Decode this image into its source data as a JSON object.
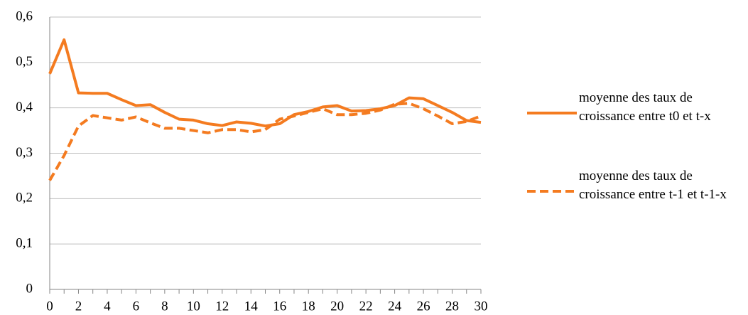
{
  "chart_data": {
    "type": "line",
    "categories": [
      "0",
      null,
      "2",
      null,
      "4",
      null,
      "6",
      null,
      "8",
      null,
      "10",
      null,
      "12",
      null,
      "14",
      null,
      "16",
      null,
      "18",
      null,
      "20",
      null,
      "22",
      null,
      "24",
      null,
      "26",
      null,
      "28",
      null,
      "30"
    ],
    "series": [
      {
        "name": "moyenne des taux de croissance entre t0 et t-x",
        "color": "#f47b20",
        "line_style": "solid",
        "values": [
          0.475,
          0.55,
          0.433,
          0.432,
          0.432,
          0.418,
          0.405,
          0.407,
          0.39,
          0.375,
          0.373,
          0.365,
          0.361,
          0.369,
          0.366,
          0.36,
          0.365,
          0.385,
          0.392,
          0.402,
          0.405,
          0.393,
          0.394,
          0.398,
          0.405,
          0.422,
          0.42,
          0.405,
          0.39,
          0.372,
          0.368
        ]
      },
      {
        "name": "moyenne des taux de croissance entre t-1 et t-1-x",
        "color": "#f47b20",
        "line_style": "dashed",
        "values": [
          0.24,
          0.295,
          0.36,
          0.383,
          0.378,
          0.373,
          0.38,
          0.367,
          0.355,
          0.355,
          0.35,
          0.345,
          0.352,
          0.352,
          0.347,
          0.352,
          0.375,
          0.382,
          0.39,
          0.398,
          0.385,
          0.385,
          0.388,
          0.395,
          0.408,
          0.41,
          0.398,
          0.382,
          0.365,
          0.37,
          0.382
        ]
      }
    ],
    "ylim": [
      0,
      0.6
    ],
    "yticks": [
      0,
      {
        "value": 0.1,
        "label": "0,1"
      },
      {
        "value": 0.2,
        "label": "0,2"
      },
      {
        "value": 0.3,
        "label": "0,3"
      },
      {
        "value": 0.4,
        "label": "0,4"
      },
      {
        "value": 0.5,
        "label": "0,5"
      },
      {
        "value": 0.6,
        "label": "0,6"
      }
    ],
    "grid": true,
    "legend_position": "right"
  }
}
